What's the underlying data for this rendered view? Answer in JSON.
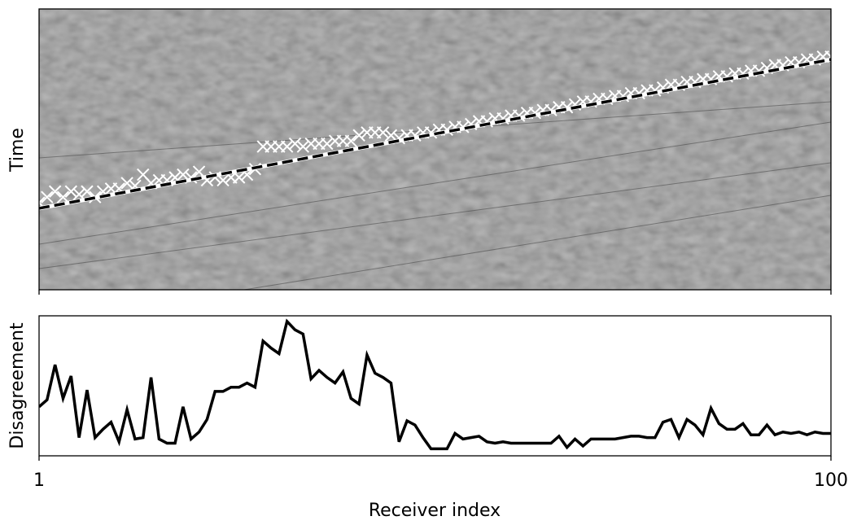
{
  "chart_data": [
    {
      "type": "scatter",
      "ylabel": "Time",
      "marker": "x",
      "color": "#ffffff",
      "x": [
        1,
        2,
        3,
        4,
        5,
        6,
        7,
        8,
        9,
        10,
        11,
        12,
        13,
        14,
        15,
        16,
        17,
        18,
        19,
        20,
        21,
        22,
        23,
        24,
        25,
        26,
        27,
        28,
        29,
        30,
        31,
        32,
        33,
        34,
        35,
        36,
        37,
        38,
        39,
        40,
        41,
        42,
        43,
        44,
        45,
        46,
        47,
        48,
        49,
        50,
        51,
        52,
        53,
        54,
        55,
        56,
        57,
        58,
        59,
        60,
        61,
        62,
        63,
        64,
        65,
        66,
        67,
        68,
        69,
        70,
        71,
        72,
        73,
        74,
        75,
        76,
        77,
        78,
        79,
        80,
        81,
        82,
        83,
        84,
        85,
        86,
        87,
        88,
        89,
        90,
        91,
        92,
        93,
        94,
        95,
        96,
        97,
        98,
        99,
        100
      ],
      "values": [
        0.31,
        0.33,
        0.35,
        0.33,
        0.35,
        0.34,
        0.35,
        0.33,
        0.35,
        0.36,
        0.36,
        0.38,
        0.37,
        0.41,
        0.38,
        0.39,
        0.39,
        0.4,
        0.41,
        0.4,
        0.42,
        0.39,
        0.4,
        0.39,
        0.4,
        0.4,
        0.41,
        0.43,
        0.51,
        0.51,
        0.51,
        0.51,
        0.52,
        0.51,
        0.52,
        0.52,
        0.52,
        0.53,
        0.53,
        0.53,
        0.55,
        0.56,
        0.56,
        0.56,
        0.55,
        0.54,
        0.55,
        0.55,
        0.56,
        0.56,
        0.57,
        0.57,
        0.58,
        0.58,
        0.59,
        0.6,
        0.6,
        0.61,
        0.61,
        0.62,
        0.62,
        0.63,
        0.63,
        0.64,
        0.64,
        0.65,
        0.65,
        0.66,
        0.67,
        0.67,
        0.68,
        0.68,
        0.69,
        0.69,
        0.7,
        0.7,
        0.71,
        0.71,
        0.72,
        0.73,
        0.73,
        0.74,
        0.74,
        0.75,
        0.75,
        0.76,
        0.76,
        0.77,
        0.77,
        0.78,
        0.78,
        0.79,
        0.8,
        0.8,
        0.81,
        0.81,
        0.82,
        0.82,
        0.83,
        0.83
      ],
      "line": {
        "x": [
          1,
          100
        ],
        "values": [
          0.29,
          0.82
        ],
        "color": "#000000",
        "dash": true
      },
      "xlim": [
        1,
        100
      ],
      "ylim": [
        0,
        1
      ],
      "xticks": [
        1,
        100
      ]
    },
    {
      "type": "line",
      "ylabel": "Disagreement",
      "xlabel": "Receiver index",
      "color": "#000000",
      "x": [
        1,
        2,
        3,
        4,
        5,
        6,
        7,
        8,
        9,
        10,
        11,
        12,
        13,
        14,
        15,
        16,
        17,
        18,
        19,
        20,
        21,
        22,
        23,
        24,
        25,
        26,
        27,
        28,
        29,
        30,
        31,
        32,
        33,
        34,
        35,
        36,
        37,
        38,
        39,
        40,
        41,
        42,
        43,
        44,
        45,
        46,
        47,
        48,
        49,
        50,
        51,
        52,
        53,
        54,
        55,
        56,
        57,
        58,
        59,
        60,
        61,
        62,
        63,
        64,
        65,
        66,
        67,
        68,
        69,
        70,
        71,
        72,
        73,
        74,
        75,
        76,
        77,
        78,
        79,
        80,
        81,
        82,
        83,
        84,
        85,
        86,
        87,
        88,
        89,
        90,
        91,
        92,
        93,
        94,
        95,
        96,
        97,
        98,
        99,
        100
      ],
      "values": [
        0.35,
        0.4,
        0.65,
        0.41,
        0.57,
        0.13,
        0.47,
        0.13,
        0.19,
        0.24,
        0.1,
        0.33,
        0.12,
        0.13,
        0.56,
        0.12,
        0.09,
        0.09,
        0.35,
        0.12,
        0.17,
        0.26,
        0.46,
        0.46,
        0.49,
        0.49,
        0.52,
        0.49,
        0.82,
        0.77,
        0.73,
        0.96,
        0.9,
        0.87,
        0.55,
        0.61,
        0.56,
        0.52,
        0.6,
        0.41,
        0.37,
        0.72,
        0.59,
        0.56,
        0.52,
        0.1,
        0.25,
        0.22,
        0.13,
        0.05,
        0.05,
        0.05,
        0.16,
        0.12,
        0.13,
        0.14,
        0.1,
        0.09,
        0.1,
        0.09,
        0.09,
        0.09,
        0.09,
        0.09,
        0.09,
        0.14,
        0.06,
        0.12,
        0.07,
        0.12,
        0.12,
        0.12,
        0.12,
        0.13,
        0.14,
        0.14,
        0.13,
        0.13,
        0.24,
        0.26,
        0.13,
        0.26,
        0.22,
        0.15,
        0.34,
        0.23,
        0.19,
        0.19,
        0.23,
        0.15,
        0.15,
        0.22,
        0.15,
        0.17,
        0.16,
        0.17,
        0.15,
        0.17,
        0.16,
        0.16
      ],
      "xlim": [
        1,
        100
      ],
      "ylim": [
        0,
        1
      ],
      "xticks": [
        1,
        100
      ]
    }
  ]
}
